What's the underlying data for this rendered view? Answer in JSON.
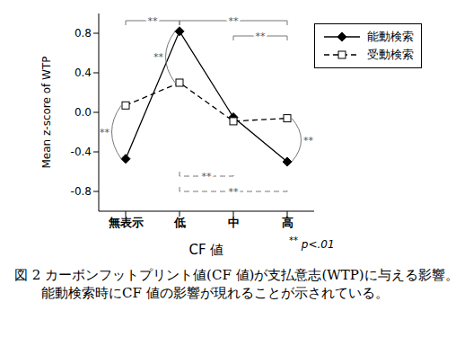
{
  "chart_data": {
    "type": "line",
    "categories": [
      "無表示",
      "低",
      "中",
      "高"
    ],
    "x_label": "CF 値",
    "y_label": "Mean z-score of WTP",
    "ylim": [
      -1.0,
      1.0
    ],
    "yticks": [
      -0.8,
      -0.4,
      {
        "value": 0,
        "label": "0.0"
      },
      0.4,
      0.8
    ],
    "grid": false,
    "legend": "upper right",
    "series": [
      {
        "name": "能動検索",
        "color": "#000000",
        "marker": "diamond",
        "line_style": "solid",
        "values": [
          -0.47,
          0.82,
          -0.05,
          -0.5
        ]
      },
      {
        "name": "受動検索",
        "color": "#000000",
        "marker": "square",
        "line_style": "dashed",
        "values": [
          0.07,
          0.3,
          -0.09,
          -0.06
        ]
      }
    ],
    "annotations": [
      {
        "text": "**",
        "between": [
          "無表示",
          "低"
        ],
        "series": "能動検索"
      },
      {
        "text": "**",
        "between": [
          "低",
          "高"
        ],
        "series": "能動検索"
      },
      {
        "text": "**",
        "between": [
          "中",
          "高"
        ],
        "series": "能動検索"
      },
      {
        "text": "**",
        "between": [
          "低",
          "中"
        ],
        "series": "受動検索"
      },
      {
        "text": "**",
        "between": [
          "低",
          "高"
        ],
        "series": "受動検索"
      },
      {
        "text": "**",
        "at": "無表示"
      },
      {
        "text": "**",
        "at": "低"
      },
      {
        "text": "**",
        "at": "高"
      }
    ],
    "footnote": {
      "mark": "**",
      "text": "p<.01"
    },
    "caption": "図 2 カーボンフットプリント値(CF 値)が支払意志(WTP)に与える影響。",
    "note": "能動検索時にCF 値の影響が現れることが示されている。"
  }
}
